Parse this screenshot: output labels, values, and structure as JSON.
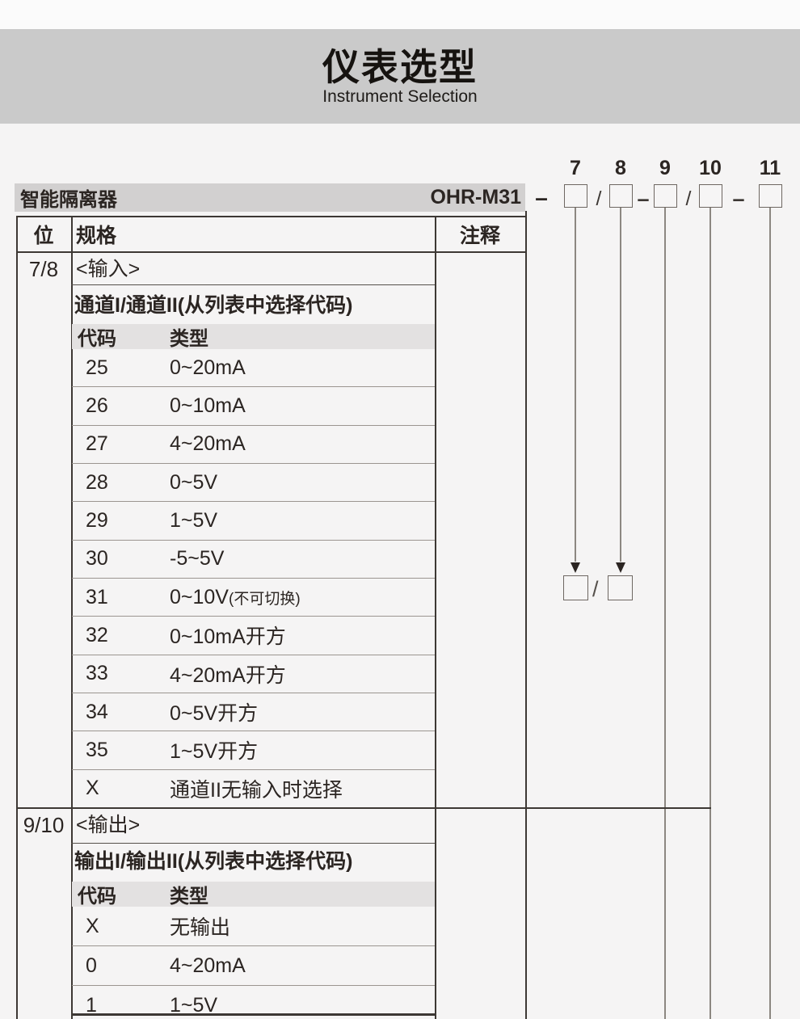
{
  "header": {
    "title": "仪表选型",
    "subtitle": "Instrument Selection"
  },
  "model": {
    "product": "智能隔离器",
    "code": "OHR-M31",
    "dash": "–",
    "digits": [
      "7",
      "8",
      "9",
      "10",
      "11"
    ],
    "separators": [
      "/",
      "–",
      "/",
      "–"
    ],
    "channel_pick_separator": "/"
  },
  "table": {
    "col_position": "位",
    "col_spec": "规格",
    "col_note": "注释",
    "sections": [
      {
        "position": "7/8",
        "title": "<输入>",
        "subtitle": "通道I/通道II(从列表中选择代码)",
        "code_label": "代码",
        "type_label": "类型",
        "rows": [
          {
            "code": "25",
            "type": "0~20mA",
            "note": ""
          },
          {
            "code": "26",
            "type": "0~10mA",
            "note": ""
          },
          {
            "code": "27",
            "type": "4~20mA",
            "note": ""
          },
          {
            "code": "28",
            "type": "0~5V",
            "note": ""
          },
          {
            "code": "29",
            "type": "1~5V",
            "note": ""
          },
          {
            "code": "30",
            "type": "-5~5V",
            "note": ""
          },
          {
            "code": "31",
            "type": "0~10V",
            "note": "(不可切换)"
          },
          {
            "code": "32",
            "type": "0~10mA开方",
            "note": ""
          },
          {
            "code": "33",
            "type": "4~20mA开方",
            "note": ""
          },
          {
            "code": "34",
            "type": "0~5V开方",
            "note": ""
          },
          {
            "code": "35",
            "type": "1~5V开方",
            "note": ""
          },
          {
            "code": "X",
            "type": "通道II无输入时选择",
            "note": ""
          }
        ]
      },
      {
        "position": "9/10",
        "title": "<输出>",
        "subtitle": "输出I/输出II(从列表中选择代码)",
        "code_label": "代码",
        "type_label": "类型",
        "rows": [
          {
            "code": "X",
            "type": "无输出",
            "note": ""
          },
          {
            "code": "0",
            "type": "4~20mA",
            "note": ""
          },
          {
            "code": "1",
            "type": "1~5V",
            "note": ""
          }
        ]
      }
    ]
  },
  "colors": {
    "page_bg": "#f5f4f4",
    "top_strip": "#fbfbfb",
    "title_band": "#cacaca",
    "model_bar": "#d2d0d0",
    "code_header_bar": "#e3e1e1",
    "text": "#2b2522",
    "dark_line": "#3d3834",
    "gray_line": "#9b9590",
    "box_border": "#6e6762"
  }
}
